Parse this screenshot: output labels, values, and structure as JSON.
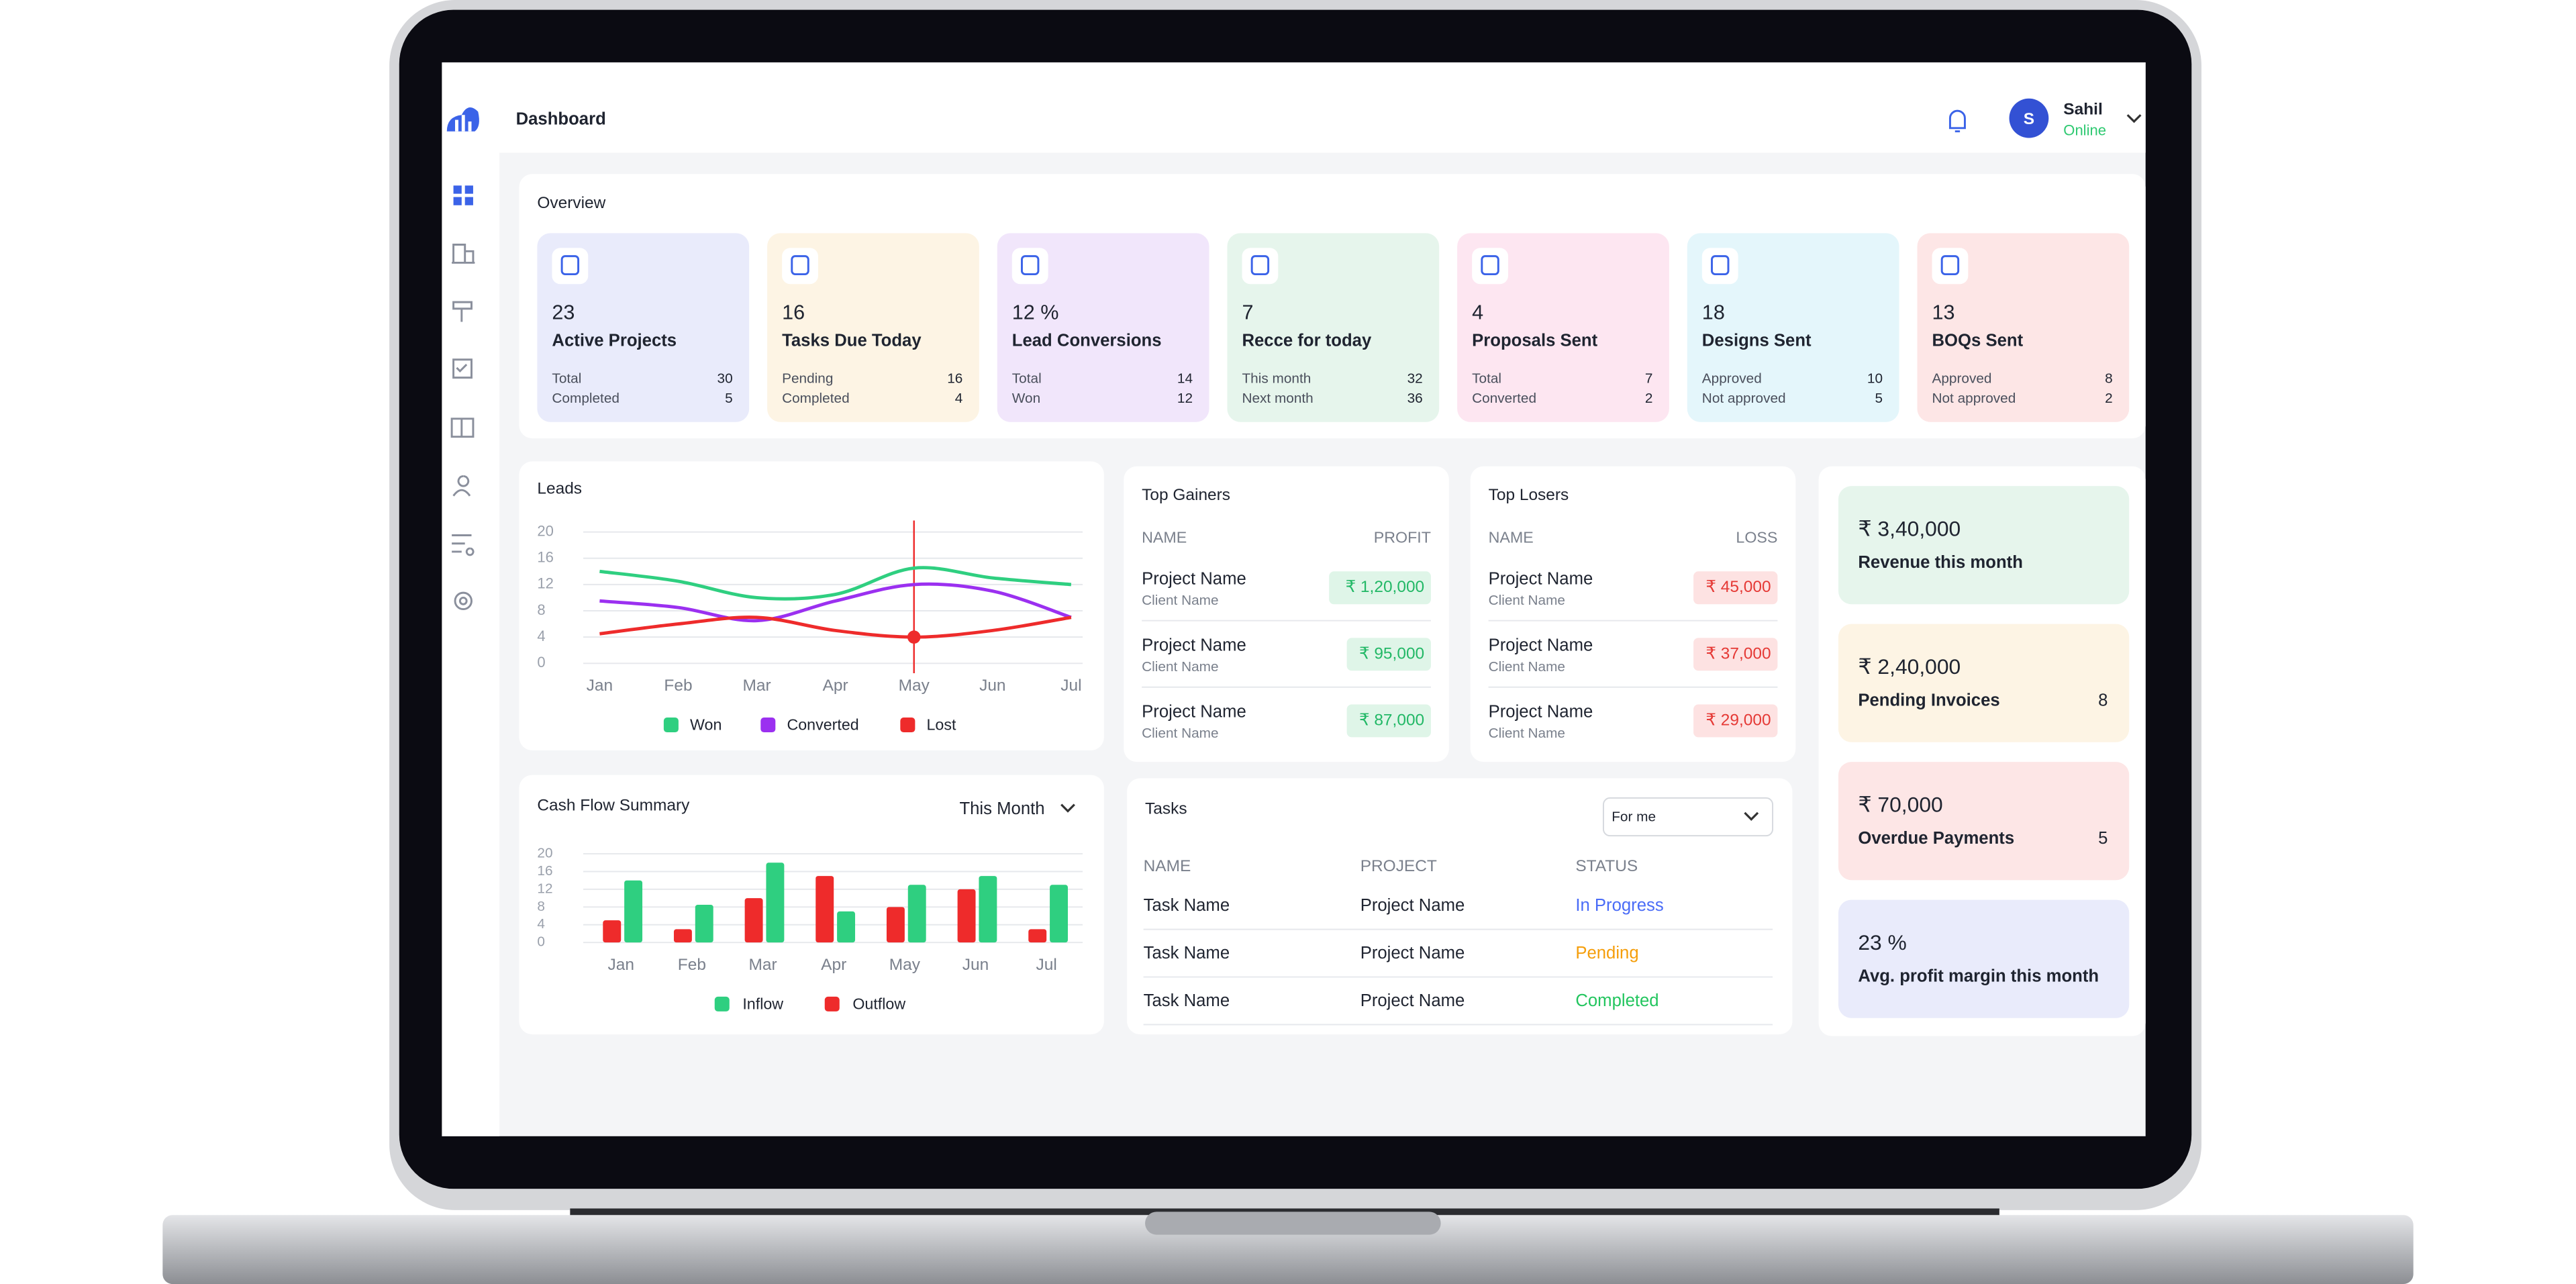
{
  "header": {
    "title": "Dashboard",
    "avatar": "S",
    "user": "Sahil",
    "status": "Online"
  },
  "overview": {
    "title": "Overview",
    "cards": [
      {
        "value": "23",
        "label": "Active Projects",
        "rows": [
          [
            "Total",
            "30"
          ],
          [
            "Completed",
            "5"
          ]
        ]
      },
      {
        "value": "16",
        "label": "Tasks Due Today",
        "rows": [
          [
            "Pending",
            "16"
          ],
          [
            "Completed",
            "4"
          ]
        ]
      },
      {
        "value": "12 %",
        "label": "Lead Conversions",
        "rows": [
          [
            "Total",
            "14"
          ],
          [
            "Won",
            "12"
          ]
        ]
      },
      {
        "value": "7",
        "label": "Recce for today",
        "rows": [
          [
            "This month",
            "32"
          ],
          [
            "Next month",
            "36"
          ]
        ]
      },
      {
        "value": "4",
        "label": "Proposals Sent",
        "rows": [
          [
            "Total",
            "7"
          ],
          [
            "Converted",
            "2"
          ]
        ]
      },
      {
        "value": "18",
        "label": "Designs Sent",
        "rows": [
          [
            "Approved",
            "10"
          ],
          [
            "Not approved",
            "5"
          ]
        ]
      },
      {
        "value": "13",
        "label": "BOQs Sent",
        "rows": [
          [
            "Approved",
            "8"
          ],
          [
            "Not approved",
            "2"
          ]
        ]
      }
    ]
  },
  "chart_data": [
    {
      "type": "line",
      "title": "Leads",
      "categories": [
        "Jan",
        "Feb",
        "Mar",
        "Apr",
        "May",
        "Jun",
        "Jul"
      ],
      "series": [
        {
          "name": "Won",
          "color": "#2fcf80",
          "values": [
            14,
            12.5,
            10,
            10.5,
            14.5,
            13,
            12
          ]
        },
        {
          "name": "Converted",
          "color": "#9b30f0",
          "values": [
            9.5,
            8.5,
            6.5,
            9.5,
            12,
            11,
            7
          ]
        },
        {
          "name": "Lost",
          "color": "#ee2b2b",
          "values": [
            4.5,
            6,
            7,
            5,
            4,
            5,
            7
          ]
        }
      ],
      "ylim": [
        0,
        20
      ],
      "yticks": [
        0,
        4,
        8,
        12,
        16,
        20
      ],
      "grid": true
    },
    {
      "type": "bar",
      "title": "Cash Flow Summary",
      "period": "This Month",
      "categories": [
        "Jan",
        "Feb",
        "Mar",
        "Apr",
        "May",
        "Jun",
        "Jul"
      ],
      "series": [
        {
          "name": "Inflow",
          "color": "#2fcf80",
          "values": [
            14,
            8.5,
            18,
            7,
            13,
            15,
            13
          ]
        },
        {
          "name": "Outflow",
          "color": "#ee2b2b",
          "values": [
            5,
            3,
            10,
            15,
            8,
            12,
            3
          ]
        }
      ],
      "ylim": [
        0,
        20
      ],
      "yticks": [
        0,
        4,
        8,
        12,
        16,
        20
      ],
      "grid": true
    }
  ],
  "gainers": {
    "title": "Top Gainers",
    "columns": [
      "NAME",
      "PROFIT"
    ],
    "rows": [
      {
        "name": "Project Name",
        "client": "Client Name",
        "amount": "₹ 1,20,000"
      },
      {
        "name": "Project Name",
        "client": "Client Name",
        "amount": "₹ 95,000"
      },
      {
        "name": "Project Name",
        "client": "Client Name",
        "amount": "₹ 87,000"
      }
    ]
  },
  "losers": {
    "title": "Top Losers",
    "columns": [
      "NAME",
      "LOSS"
    ],
    "rows": [
      {
        "name": "Project Name",
        "client": "Client Name",
        "amount": "₹ 45,000"
      },
      {
        "name": "Project Name",
        "client": "Client Name",
        "amount": "₹ 37,000"
      },
      {
        "name": "Project Name",
        "client": "Client Name",
        "amount": "₹ 29,000"
      }
    ]
  },
  "tasks": {
    "title": "Tasks",
    "filter": "For me",
    "columns": [
      "NAME",
      "PROJECT",
      "STATUS"
    ],
    "rows": [
      [
        "Task Name",
        "Project Name",
        "In Progress"
      ],
      [
        "Task Name",
        "Project Name",
        "Pending"
      ],
      [
        "Task Name",
        "Project Name",
        "Completed"
      ]
    ]
  },
  "summary": [
    {
      "value": "₹ 3,40,000",
      "label": "Revenue this month"
    },
    {
      "value": "₹ 2,40,000",
      "label": "Pending Invoices",
      "count": "8"
    },
    {
      "value": "₹ 70,000",
      "label": "Overdue Payments",
      "count": "5"
    },
    {
      "value": "23 %",
      "label": "Avg. profit margin this month"
    }
  ]
}
